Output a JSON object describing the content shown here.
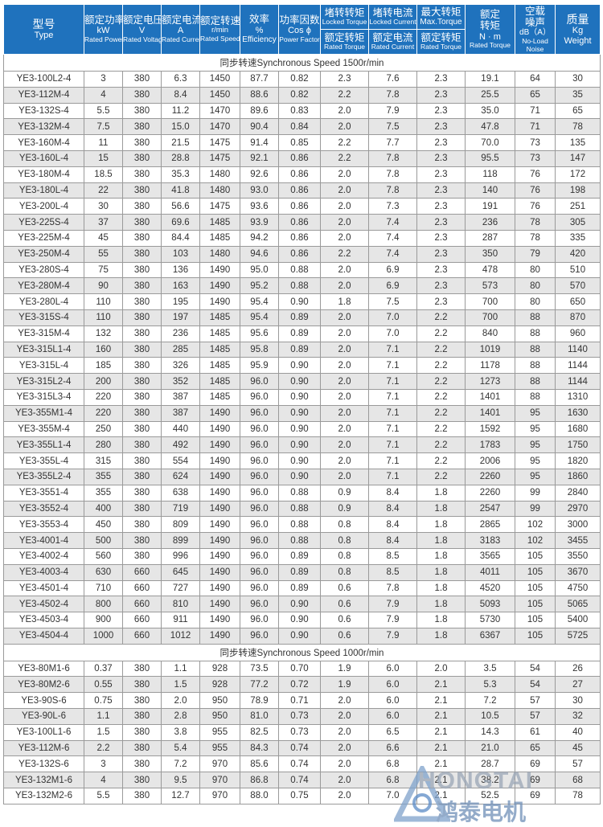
{
  "header": {
    "type": {
      "cn": "型号",
      "en": "Type"
    },
    "power": {
      "cn": "额定功率",
      "unit": "kW",
      "en": "Rated Power"
    },
    "voltage": {
      "cn": "额定电压",
      "unit": "V",
      "en": "Rated Voltage"
    },
    "current": {
      "cn": "额定电流",
      "unit": "A",
      "en": "Rated Current"
    },
    "speed": {
      "cn": "额定转速",
      "unit": "r/min",
      "en": "Rated Speed"
    },
    "efficiency": {
      "cn": "效率",
      "unit": "%",
      "en": "Efficiency"
    },
    "power_factor": {
      "cn": "功率因数",
      "unit": "Cos ϕ",
      "en": "Power Factor"
    },
    "locked_torque": {
      "cn": "堵转转矩",
      "en": "Locked Torque",
      "sub_cn": "额定转矩",
      "sub_en": "Rated Torque"
    },
    "locked_current": {
      "cn": "堵转电流",
      "en": "Locked Current",
      "sub_cn": "额定电流",
      "sub_en": "Rated Current"
    },
    "max_torque": {
      "cn": "最大转矩",
      "en": "Max.Torque",
      "sub_cn": "额定转矩",
      "sub_en": "Rated Torque"
    },
    "rated_torque": {
      "cn1": "额定",
      "cn2": "转矩",
      "unit": "N · m",
      "en": "Rated Torque"
    },
    "noise": {
      "cn1": "空载",
      "cn2": "噪声",
      "unit": "dB（A）",
      "en1": "No-Load",
      "en2": "Noise"
    },
    "weight": {
      "cn": "质量",
      "unit": "Kg",
      "en": "Weight"
    }
  },
  "sections": [
    {
      "title": "同步转速Synchronous Speed  1500r/min",
      "rows": [
        [
          "YE3-100L2-4",
          "3",
          "380",
          "6.3",
          "1450",
          "87.7",
          "0.82",
          "2.3",
          "7.6",
          "2.3",
          "19.1",
          "64",
          "30"
        ],
        [
          "YE3-112M-4",
          "4",
          "380",
          "8.4",
          "1450",
          "88.6",
          "0.82",
          "2.2",
          "7.8",
          "2.3",
          "25.5",
          "65",
          "35"
        ],
        [
          "YE3-132S-4",
          "5.5",
          "380",
          "11.2",
          "1470",
          "89.6",
          "0.83",
          "2.0",
          "7.9",
          "2.3",
          "35.0",
          "71",
          "65"
        ],
        [
          "YE3-132M-4",
          "7.5",
          "380",
          "15.0",
          "1470",
          "90.4",
          "0.84",
          "2.0",
          "7.5",
          "2.3",
          "47.8",
          "71",
          "78"
        ],
        [
          "YE3-160M-4",
          "11",
          "380",
          "21.5",
          "1475",
          "91.4",
          "0.85",
          "2.2",
          "7.7",
          "2.3",
          "70.0",
          "73",
          "135"
        ],
        [
          "YE3-160L-4",
          "15",
          "380",
          "28.8",
          "1475",
          "92.1",
          "0.86",
          "2.2",
          "7.8",
          "2.3",
          "95.5",
          "73",
          "147"
        ],
        [
          "YE3-180M-4",
          "18.5",
          "380",
          "35.3",
          "1480",
          "92.6",
          "0.86",
          "2.0",
          "7.8",
          "2.3",
          "118",
          "76",
          "172"
        ],
        [
          "YE3-180L-4",
          "22",
          "380",
          "41.8",
          "1480",
          "93.0",
          "0.86",
          "2.0",
          "7.8",
          "2.3",
          "140",
          "76",
          "198"
        ],
        [
          "YE3-200L-4",
          "30",
          "380",
          "56.6",
          "1475",
          "93.6",
          "0.86",
          "2.0",
          "7.3",
          "2.3",
          "191",
          "76",
          "251"
        ],
        [
          "YE3-225S-4",
          "37",
          "380",
          "69.6",
          "1485",
          "93.9",
          "0.86",
          "2.0",
          "7.4",
          "2.3",
          "236",
          "78",
          "305"
        ],
        [
          "YE3-225M-4",
          "45",
          "380",
          "84.4",
          "1485",
          "94.2",
          "0.86",
          "2.0",
          "7.4",
          "2.3",
          "287",
          "78",
          "335"
        ],
        [
          "YE3-250M-4",
          "55",
          "380",
          "103",
          "1480",
          "94.6",
          "0.86",
          "2.2",
          "7.4",
          "2.3",
          "350",
          "79",
          "420"
        ],
        [
          "YE3-280S-4",
          "75",
          "380",
          "136",
          "1490",
          "95.0",
          "0.88",
          "2.0",
          "6.9",
          "2.3",
          "478",
          "80",
          "510"
        ],
        [
          "YE3-280M-4",
          "90",
          "380",
          "163",
          "1490",
          "95.2",
          "0.88",
          "2.0",
          "6.9",
          "2.3",
          "573",
          "80",
          "570"
        ],
        [
          "YE3-280L-4",
          "110",
          "380",
          "195",
          "1490",
          "95.4",
          "0.90",
          "1.8",
          "7.5",
          "2.3",
          "700",
          "80",
          "650"
        ],
        [
          "YE3-315S-4",
          "110",
          "380",
          "197",
          "1485",
          "95.4",
          "0.89",
          "2.0",
          "7.0",
          "2.2",
          "700",
          "88",
          "870"
        ],
        [
          "YE3-315M-4",
          "132",
          "380",
          "236",
          "1485",
          "95.6",
          "0.89",
          "2.0",
          "7.0",
          "2.2",
          "840",
          "88",
          "960"
        ],
        [
          "YE3-315L1-4",
          "160",
          "380",
          "285",
          "1485",
          "95.8",
          "0.89",
          "2.0",
          "7.1",
          "2.2",
          "1019",
          "88",
          "1140"
        ],
        [
          "YE3-315L-4",
          "185",
          "380",
          "326",
          "1485",
          "95.9",
          "0.90",
          "2.0",
          "7.1",
          "2.2",
          "1178",
          "88",
          "1144"
        ],
        [
          "YE3-315L2-4",
          "200",
          "380",
          "352",
          "1485",
          "96.0",
          "0.90",
          "2.0",
          "7.1",
          "2.2",
          "1273",
          "88",
          "1144"
        ],
        [
          "YE3-315L3-4",
          "220",
          "380",
          "387",
          "1485",
          "96.0",
          "0.90",
          "2.0",
          "7.1",
          "2.2",
          "1401",
          "88",
          "1310"
        ],
        [
          "YE3-355M1-4",
          "220",
          "380",
          "387",
          "1490",
          "96.0",
          "0.90",
          "2.0",
          "7.1",
          "2.2",
          "1401",
          "95",
          "1630"
        ],
        [
          "YE3-355M-4",
          "250",
          "380",
          "440",
          "1490",
          "96.0",
          "0.90",
          "2.0",
          "7.1",
          "2.2",
          "1592",
          "95",
          "1680"
        ],
        [
          "YE3-355L1-4",
          "280",
          "380",
          "492",
          "1490",
          "96.0",
          "0.90",
          "2.0",
          "7.1",
          "2.2",
          "1783",
          "95",
          "1750"
        ],
        [
          "YE3-355L-4",
          "315",
          "380",
          "554",
          "1490",
          "96.0",
          "0.90",
          "2.0",
          "7.1",
          "2.2",
          "2006",
          "95",
          "1820"
        ],
        [
          "YE3-355L2-4",
          "355",
          "380",
          "624",
          "1490",
          "96.0",
          "0.90",
          "2.0",
          "7.1",
          "2.2",
          "2260",
          "95",
          "1860"
        ],
        [
          "YE3-3551-4",
          "355",
          "380",
          "638",
          "1490",
          "96.0",
          "0.88",
          "0.9",
          "8.4",
          "1.8",
          "2260",
          "99",
          "2840"
        ],
        [
          "YE3-3552-4",
          "400",
          "380",
          "719",
          "1490",
          "96.0",
          "0.88",
          "0.9",
          "8.4",
          "1.8",
          "2547",
          "99",
          "2970"
        ],
        [
          "YE3-3553-4",
          "450",
          "380",
          "809",
          "1490",
          "96.0",
          "0.88",
          "0.8",
          "8.4",
          "1.8",
          "2865",
          "102",
          "3000"
        ],
        [
          "YE3-4001-4",
          "500",
          "380",
          "899",
          "1490",
          "96.0",
          "0.88",
          "0.8",
          "8.4",
          "1.8",
          "3183",
          "102",
          "3455"
        ],
        [
          "YE3-4002-4",
          "560",
          "380",
          "996",
          "1490",
          "96.0",
          "0.89",
          "0.8",
          "8.5",
          "1.8",
          "3565",
          "105",
          "3550"
        ],
        [
          "YE3-4003-4",
          "630",
          "660",
          "645",
          "1490",
          "96.0",
          "0.89",
          "0.8",
          "8.5",
          "1.8",
          "4011",
          "105",
          "3670"
        ],
        [
          "YE3-4501-4",
          "710",
          "660",
          "727",
          "1490",
          "96.0",
          "0.89",
          "0.6",
          "7.8",
          "1.8",
          "4520",
          "105",
          "4750"
        ],
        [
          "YE3-4502-4",
          "800",
          "660",
          "810",
          "1490",
          "96.0",
          "0.90",
          "0.6",
          "7.9",
          "1.8",
          "5093",
          "105",
          "5065"
        ],
        [
          "YE3-4503-4",
          "900",
          "660",
          "911",
          "1490",
          "96.0",
          "0.90",
          "0.6",
          "7.9",
          "1.8",
          "5730",
          "105",
          "5400"
        ],
        [
          "YE3-4504-4",
          "1000",
          "660",
          "1012",
          "1490",
          "96.0",
          "0.90",
          "0.6",
          "7.9",
          "1.8",
          "6367",
          "105",
          "5725"
        ]
      ]
    },
    {
      "title": "同步转速Synchronous Speed  1000r/min",
      "rows": [
        [
          "YE3-80M1-6",
          "0.37",
          "380",
          "1.1",
          "928",
          "73.5",
          "0.70",
          "1.9",
          "6.0",
          "2.0",
          "3.5",
          "54",
          "26"
        ],
        [
          "YE3-80M2-6",
          "0.55",
          "380",
          "1.5",
          "928",
          "77.2",
          "0.72",
          "1.9",
          "6.0",
          "2.1",
          "5.3",
          "54",
          "27"
        ],
        [
          "YE3-90S-6",
          "0.75",
          "380",
          "2.0",
          "950",
          "78.9",
          "0.71",
          "2.0",
          "6.0",
          "2.1",
          "7.2",
          "57",
          "30"
        ],
        [
          "YE3-90L-6",
          "1.1",
          "380",
          "2.8",
          "950",
          "81.0",
          "0.73",
          "2.0",
          "6.0",
          "2.1",
          "10.5",
          "57",
          "32"
        ],
        [
          "YE3-100L1-6",
          "1.5",
          "380",
          "3.8",
          "955",
          "82.5",
          "0.73",
          "2.0",
          "6.5",
          "2.1",
          "14.3",
          "61",
          "40"
        ],
        [
          "YE3-112M-6",
          "2.2",
          "380",
          "5.4",
          "955",
          "84.3",
          "0.74",
          "2.0",
          "6.6",
          "2.1",
          "21.0",
          "65",
          "45"
        ],
        [
          "YE3-132S-6",
          "3",
          "380",
          "7.2",
          "970",
          "85.6",
          "0.74",
          "2.0",
          "6.8",
          "2.1",
          "28.7",
          "69",
          "57"
        ],
        [
          "YE3-132M1-6",
          "4",
          "380",
          "9.5",
          "970",
          "86.8",
          "0.74",
          "2.0",
          "6.8",
          "2.1",
          "38.2",
          "69",
          "68"
        ],
        [
          "YE3-132M2-6",
          "5.5",
          "380",
          "12.7",
          "970",
          "88.0",
          "0.75",
          "2.0",
          "7.0",
          "2.1",
          "52.5",
          "69",
          "78"
        ]
      ]
    }
  ],
  "watermark": {
    "brand_en": "HONGTAI",
    "brand_cn": "鸿泰电机"
  },
  "colors": {
    "header_bg": "#1f72bd",
    "stripe": "#e6e6e6"
  }
}
